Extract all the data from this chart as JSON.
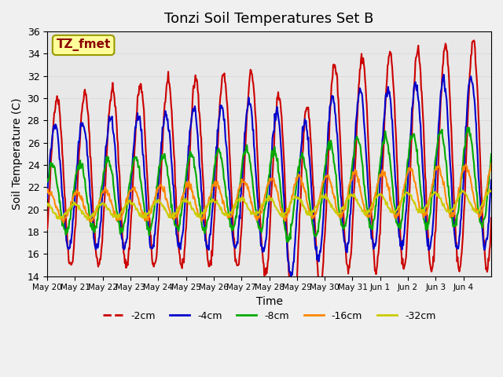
{
  "title": "Tonzi Soil Temperatures Set B",
  "xlabel": "Time",
  "ylabel": "Soil Temperature (C)",
  "annotation_text": "TZ_fmet",
  "annotation_color": "#8B0000",
  "annotation_bg": "#FFFF99",
  "ylim": [
    14,
    36
  ],
  "yticks": [
    14,
    16,
    18,
    20,
    22,
    24,
    26,
    28,
    30,
    32,
    34,
    36
  ],
  "series": {
    "-2cm": {
      "color": "#CC0000",
      "linewidth": 1.5
    },
    "-4cm": {
      "color": "#0000CC",
      "linewidth": 1.5
    },
    "-8cm": {
      "color": "#00AA00",
      "linewidth": 1.5
    },
    "-16cm": {
      "color": "#FF8800",
      "linewidth": 1.5
    },
    "-32cm": {
      "color": "#CCCC00",
      "linewidth": 1.5
    }
  },
  "legend_order": [
    "-2cm",
    "-4cm",
    "-8cm",
    "-16cm",
    "-32cm"
  ],
  "x_tick_labels": [
    "May 20",
    "May 21",
    "May 22",
    "May 23",
    "May 24",
    "May 25",
    "May 26",
    "May 27",
    "May 28",
    "May 29",
    "May 30",
    "May 31",
    "Jun 1",
    "Jun 2",
    "Jun 3",
    "Jun 4"
  ],
  "grid_color": "#DCDCDC",
  "bg_color": "#E8E8E8",
  "plot_bg": "#F0F0F0"
}
